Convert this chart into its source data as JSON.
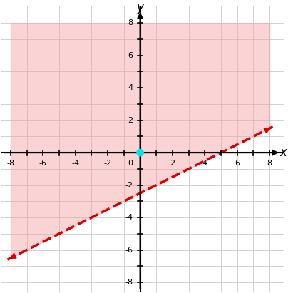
{
  "xlim": [
    -8,
    8
  ],
  "ylim": [
    -8,
    8
  ],
  "xticks": [
    -8,
    -7,
    -6,
    -5,
    -4,
    -3,
    -2,
    -1,
    0,
    1,
    2,
    3,
    4,
    5,
    6,
    7,
    8
  ],
  "yticks": [
    -8,
    -7,
    -6,
    -5,
    -4,
    -3,
    -2,
    -1,
    0,
    1,
    2,
    3,
    4,
    5,
    6,
    7,
    8
  ],
  "xtick_labels": [
    "-8",
    "",
    "-6",
    "",
    "-4",
    "",
    "-2",
    "",
    "0",
    "",
    "2",
    "",
    "4",
    "",
    "6",
    "",
    "8"
  ],
  "ytick_labels": [
    "-8",
    "",
    "-6",
    "",
    "-4",
    "",
    "-2",
    "",
    "0",
    "",
    "2",
    "",
    "4",
    "",
    "6",
    "",
    "8"
  ],
  "xlabel": "x",
  "ylabel": "y",
  "line_slope": 0.5,
  "line_intercept": -2.5,
  "line_color": "#dd0000",
  "line_width": 2.5,
  "shade_color": "#f4a0a0",
  "shade_alpha": 0.45,
  "dot_x": 0,
  "dot_y": 0,
  "dot_color": "#00e5e5",
  "dot_size": 60,
  "background_color": "#ffffff",
  "grid_color": "#c0c0c0",
  "grid_linewidth": 0.5
}
